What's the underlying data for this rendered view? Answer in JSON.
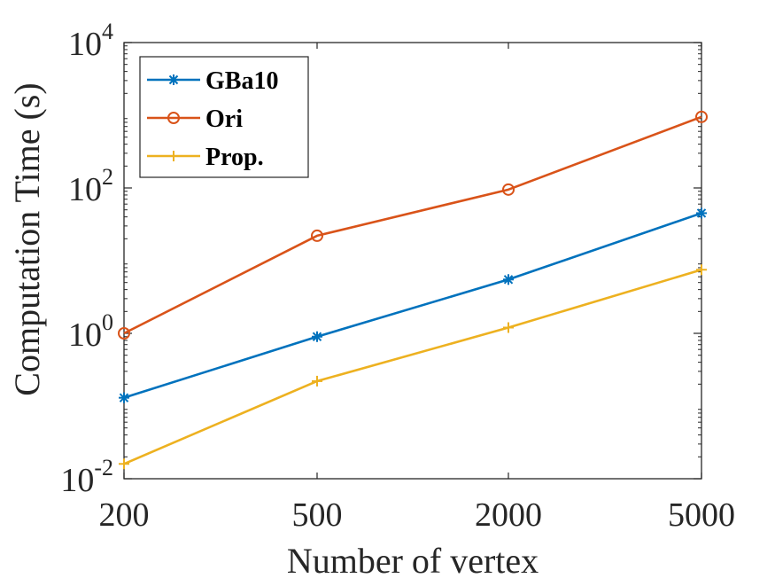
{
  "chart_data": {
    "type": "line",
    "xlabel": "Number of vertex",
    "ylabel": "Computation Time (s)",
    "categories": [
      "200",
      "500",
      "2000",
      "5000"
    ],
    "y_scale": "log",
    "ylim": [
      0.01,
      10000
    ],
    "y_ticks": [
      {
        "value": 0.01,
        "base": "10",
        "exp": "-2"
      },
      {
        "value": 1,
        "base": "10",
        "exp": "0"
      },
      {
        "value": 100,
        "base": "10",
        "exp": "2"
      },
      {
        "value": 10000,
        "base": "10",
        "exp": "4"
      }
    ],
    "grid": false,
    "legend_position": "top-left",
    "series": [
      {
        "name": "GBa10",
        "color": "#0072BD",
        "marker": "asterisk",
        "values": [
          0.13,
          0.9,
          5.5,
          45
        ]
      },
      {
        "name": "Ori",
        "color": "#D95319",
        "marker": "circle",
        "values": [
          1.0,
          22,
          95,
          950
        ]
      },
      {
        "name": "Prop.",
        "color": "#EDB120",
        "marker": "plus",
        "values": [
          0.016,
          0.22,
          1.2,
          7.5
        ]
      }
    ]
  }
}
